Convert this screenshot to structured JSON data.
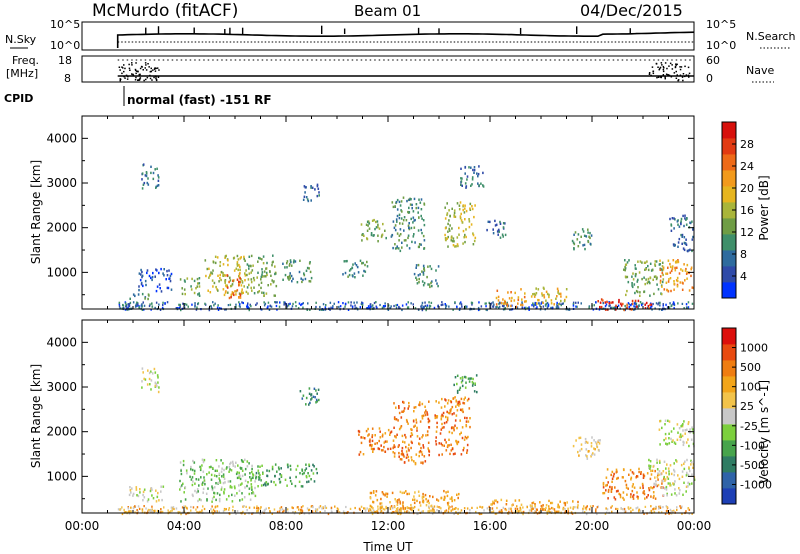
{
  "header": {
    "station": "McMurdo (fitACF)",
    "beam": "Beam 01",
    "date": "04/Dec/2015"
  },
  "status_panels": {
    "nsky_label": "N.Sky",
    "nsky_ticks": [
      "10^5",
      "10^0"
    ],
    "nsearch_label": "N.Search",
    "nsearch_ticks": [
      "10^5",
      "10^0"
    ],
    "freq_label_1": "Freq.",
    "freq_label_2": "[MHz]",
    "freq_ticks": [
      "18",
      "8"
    ],
    "nave_label": "Nave",
    "nave_ticks": [
      "60",
      "0"
    ],
    "cpid_label": "CPID",
    "cpid_text": "normal (fast) -151 RF"
  },
  "chart_data": [
    {
      "type": "heatmap",
      "title": "",
      "xlabel": "Time UT",
      "ylabel": "Slant Range [km]",
      "x_ticks": [
        "00:00",
        "04:00",
        "08:00",
        "12:00",
        "16:00",
        "20:00",
        "00:00"
      ],
      "y_ticks": [
        "1000",
        "2000",
        "3000",
        "4000"
      ],
      "ylim": [
        180,
        4500
      ],
      "xlim_hours": [
        0,
        24
      ],
      "colorbar": {
        "label": "Power [dB]",
        "ticks": [
          "4",
          "8",
          "12",
          "16",
          "20",
          "24",
          "28"
        ],
        "colors": [
          "#0033ff",
          "#2f4aa8",
          "#2e6b9e",
          "#3f8f6a",
          "#6f9d45",
          "#a9b53a",
          "#e6b51f",
          "#f29a1c",
          "#ee6a18",
          "#e23a12",
          "#d7100c"
        ]
      },
      "clusters": [
        {
          "t0": 1.4,
          "t1": 3.1,
          "r0": 200,
          "r1": 330,
          "level": 2
        },
        {
          "t0": 1.6,
          "t1": 2.6,
          "r0": 420,
          "r1": 560,
          "level": 3
        },
        {
          "t0": 2.2,
          "t1": 3.5,
          "r0": 600,
          "r1": 1100,
          "level": 1
        },
        {
          "t0": 2.3,
          "t1": 3.0,
          "r0": 2900,
          "r1": 3450,
          "level": 2
        },
        {
          "t0": 3.8,
          "t1": 4.6,
          "r0": 500,
          "r1": 900,
          "level": 4
        },
        {
          "t0": 4.8,
          "t1": 6.4,
          "r0": 500,
          "r1": 1400,
          "level": 5
        },
        {
          "t0": 5.6,
          "t1": 6.2,
          "r0": 450,
          "r1": 1000,
          "level": 8
        },
        {
          "t0": 6.4,
          "t1": 7.6,
          "r0": 500,
          "r1": 1400,
          "level": 4
        },
        {
          "t0": 7.8,
          "t1": 9.0,
          "r0": 800,
          "r1": 1300,
          "level": 3
        },
        {
          "t0": 8.6,
          "t1": 9.3,
          "r0": 2600,
          "r1": 3000,
          "level": 2
        },
        {
          "t0": 10.2,
          "t1": 11.2,
          "r0": 900,
          "r1": 1300,
          "level": 3
        },
        {
          "t0": 10.9,
          "t1": 11.9,
          "r0": 1700,
          "r1": 2200,
          "level": 4
        },
        {
          "t0": 12.1,
          "t1": 13.4,
          "r0": 1500,
          "r1": 2700,
          "level": 3
        },
        {
          "t0": 13.0,
          "t1": 14.0,
          "r0": 700,
          "r1": 1200,
          "level": 3
        },
        {
          "t0": 14.2,
          "t1": 15.4,
          "r0": 1600,
          "r1": 2600,
          "level": 5
        },
        {
          "t0": 14.8,
          "t1": 15.8,
          "r0": 2900,
          "r1": 3400,
          "level": 2
        },
        {
          "t0": 15.8,
          "t1": 16.6,
          "r0": 1800,
          "r1": 2200,
          "level": 2
        },
        {
          "t0": 16.2,
          "t1": 17.4,
          "r0": 250,
          "r1": 650,
          "level": 7
        },
        {
          "t0": 17.6,
          "t1": 19.0,
          "r0": 300,
          "r1": 700,
          "level": 6
        },
        {
          "t0": 19.2,
          "t1": 20.0,
          "r0": 1500,
          "r1": 2000,
          "level": 3
        },
        {
          "t0": 20.2,
          "t1": 22.4,
          "r0": 180,
          "r1": 420,
          "level": 9
        },
        {
          "t0": 21.2,
          "t1": 22.8,
          "r0": 500,
          "r1": 1300,
          "level": 4
        },
        {
          "t0": 22.6,
          "t1": 24.0,
          "r0": 600,
          "r1": 1300,
          "level": 7
        },
        {
          "t0": 23.0,
          "t1": 24.0,
          "r0": 1500,
          "r1": 2300,
          "level": 2
        }
      ]
    },
    {
      "type": "heatmap",
      "title": "",
      "xlabel": "Time UT",
      "ylabel": "Slant Range [km]",
      "x_ticks": [
        "00:00",
        "04:00",
        "08:00",
        "12:00",
        "16:00",
        "20:00",
        "00:00"
      ],
      "y_ticks": [
        "1000",
        "2000",
        "3000",
        "4000"
      ],
      "ylim": [
        180,
        4500
      ],
      "xlim_hours": [
        0,
        24
      ],
      "colorbar": {
        "label": "Velocity [m s^-1]",
        "ticks": [
          "1000",
          "500",
          "100",
          "25",
          "-25",
          "-100",
          "-500",
          "-1000"
        ],
        "colors": [
          "#1d3fb5",
          "#2f63a8",
          "#2f7c63",
          "#47a44c",
          "#7ccf3d",
          "#c8c8c8",
          "#f2c34a",
          "#f2a51a",
          "#ef7d11",
          "#e84a10",
          "#dc0f0c"
        ]
      },
      "clusters": [
        {
          "t0": 1.4,
          "t1": 3.0,
          "r0": 200,
          "r1": 330,
          "level": 6
        },
        {
          "t0": 1.8,
          "t1": 3.2,
          "r0": 450,
          "r1": 800,
          "level": 5
        },
        {
          "t0": 2.3,
          "t1": 3.0,
          "r0": 2900,
          "r1": 3450,
          "level": 5
        },
        {
          "t0": 3.8,
          "t1": 6.8,
          "r0": 450,
          "r1": 1400,
          "level": 4
        },
        {
          "t0": 6.8,
          "t1": 9.2,
          "r0": 800,
          "r1": 1300,
          "level": 3
        },
        {
          "t0": 8.5,
          "t1": 9.3,
          "r0": 2600,
          "r1": 3000,
          "level": 2
        },
        {
          "t0": 10.8,
          "t1": 12.2,
          "r0": 1500,
          "r1": 2100,
          "level": 8
        },
        {
          "t0": 12.2,
          "t1": 13.6,
          "r0": 1300,
          "r1": 2700,
          "level": 8
        },
        {
          "t0": 13.8,
          "t1": 15.2,
          "r0": 1500,
          "r1": 2800,
          "level": 8
        },
        {
          "t0": 14.5,
          "t1": 15.6,
          "r0": 2900,
          "r1": 3300,
          "level": 3
        },
        {
          "t0": 11.2,
          "t1": 14.8,
          "r0": 200,
          "r1": 700,
          "level": 7
        },
        {
          "t0": 16.0,
          "t1": 19.5,
          "r0": 200,
          "r1": 500,
          "level": 7
        },
        {
          "t0": 19.2,
          "t1": 20.3,
          "r0": 1400,
          "r1": 1900,
          "level": 6
        },
        {
          "t0": 20.4,
          "t1": 22.8,
          "r0": 500,
          "r1": 1200,
          "level": 8
        },
        {
          "t0": 22.2,
          "t1": 24.0,
          "r0": 600,
          "r1": 1400,
          "level": 5
        },
        {
          "t0": 22.6,
          "t1": 24.0,
          "r0": 1700,
          "r1": 2300,
          "level": 5
        }
      ]
    }
  ]
}
